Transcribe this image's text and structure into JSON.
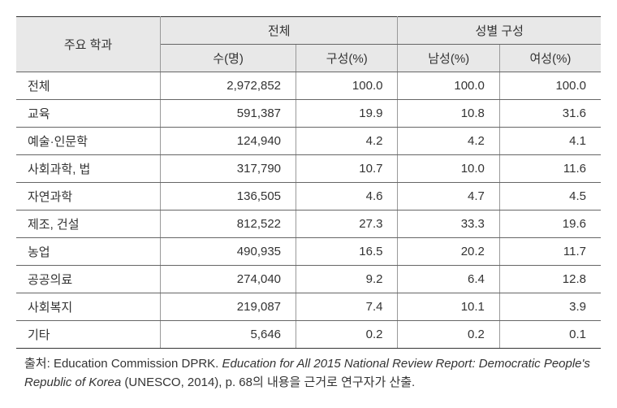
{
  "table": {
    "header": {
      "col1": "주요 학과",
      "group1": "전체",
      "group2": "성별 구성",
      "sub1": "수(명)",
      "sub2": "구성(%)",
      "sub3": "남성(%)",
      "sub4": "여성(%)"
    },
    "rows": [
      {
        "label": "전체",
        "count": "2,972,852",
        "pct": "100.0",
        "male": "100.0",
        "female": "100.0"
      },
      {
        "label": "교육",
        "count": "591,387",
        "pct": "19.9",
        "male": "10.8",
        "female": "31.6"
      },
      {
        "label": "예술·인문학",
        "count": "124,940",
        "pct": "4.2",
        "male": "4.2",
        "female": "4.1"
      },
      {
        "label": "사회과학, 법",
        "count": "317,790",
        "pct": "10.7",
        "male": "10.0",
        "female": "11.6"
      },
      {
        "label": "자연과학",
        "count": "136,505",
        "pct": "4.6",
        "male": "4.7",
        "female": "4.5"
      },
      {
        "label": "제조, 건설",
        "count": "812,522",
        "pct": "27.3",
        "male": "33.3",
        "female": "19.6"
      },
      {
        "label": "농업",
        "count": "490,935",
        "pct": "16.5",
        "male": "20.2",
        "female": "11.7"
      },
      {
        "label": "공공의료",
        "count": "274,040",
        "pct": "9.2",
        "male": "6.4",
        "female": "12.8"
      },
      {
        "label": "사회복지",
        "count": "219,087",
        "pct": "7.4",
        "male": "10.1",
        "female": "3.9"
      },
      {
        "label": "기타",
        "count": "5,646",
        "pct": "0.2",
        "male": "0.2",
        "female": "0.1"
      }
    ]
  },
  "source": {
    "label": "출처: ",
    "text1": "Education Commission DPRK. ",
    "italic": "Education for All 2015 National Review Report: Democratic People's Republic of Korea",
    "text2": " (UNESCO, 2014), p. 68의 내용을 근거로 연구자가 산출."
  }
}
